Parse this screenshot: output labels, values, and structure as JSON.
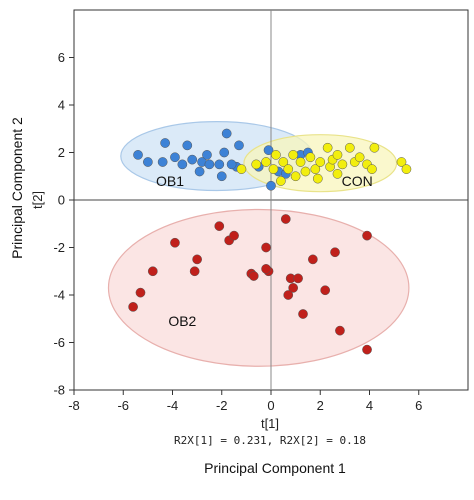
{
  "chart_data": {
    "type": "scatter",
    "xlabel": "Principal Component 1",
    "ylabel": "Principal Component 2",
    "x_short_label": "t[1]",
    "y_short_label": "t[2]",
    "variance_text": "R2X[1] = 0.231, R2X[2] = 0.18",
    "xlim": [
      -8,
      8
    ],
    "ylim": [
      -8,
      8
    ],
    "x_ticks": [
      "-8",
      "-6",
      "-4",
      "-2",
      "0",
      "2",
      "4",
      "6"
    ],
    "y_ticks": [
      "-8",
      "-6",
      "-4",
      "-2",
      "0",
      "2",
      "4",
      "6"
    ],
    "grid": false,
    "series": [
      {
        "name": "OB1",
        "color": "#3d82d6",
        "ellipse_color": "#cfe3f6",
        "ellipse_stroke": "#a9c8e8",
        "ellipse": {
          "cx": -2.2,
          "cy": 1.85,
          "rx": 3.9,
          "ry": 1.45
        },
        "points": [
          [
            -5.4,
            1.9
          ],
          [
            -5.0,
            1.6
          ],
          [
            -4.4,
            1.6
          ],
          [
            -3.9,
            1.8
          ],
          [
            -3.6,
            1.5
          ],
          [
            -4.3,
            2.4
          ],
          [
            -3.4,
            2.3
          ],
          [
            -3.2,
            1.7
          ],
          [
            -2.9,
            1.2
          ],
          [
            -2.8,
            1.6
          ],
          [
            -2.6,
            1.9
          ],
          [
            -2.5,
            1.5
          ],
          [
            -2.1,
            1.5
          ],
          [
            -2.0,
            1.0
          ],
          [
            -1.9,
            2.0
          ],
          [
            -1.8,
            2.8
          ],
          [
            -1.4,
            1.4
          ],
          [
            -1.3,
            2.3
          ],
          [
            -0.5,
            1.4
          ],
          [
            -0.1,
            2.1
          ],
          [
            0.0,
            0.6
          ],
          [
            0.3,
            1.2
          ],
          [
            0.6,
            1.1
          ],
          [
            1.2,
            1.9
          ],
          [
            1.5,
            2.0
          ],
          [
            -1.6,
            1.5
          ]
        ]
      },
      {
        "name": "CON",
        "color": "#f2ee0e",
        "ellipse_color": "#f8f6bc",
        "ellipse_stroke": "#e9e38a",
        "ellipse": {
          "cx": 2.0,
          "cy": 1.55,
          "rx": 3.1,
          "ry": 1.2
        },
        "points": [
          [
            -1.2,
            1.3
          ],
          [
            -0.6,
            1.5
          ],
          [
            -0.2,
            1.6
          ],
          [
            0.2,
            1.9
          ],
          [
            0.1,
            1.3
          ],
          [
            0.5,
            1.6
          ],
          [
            0.7,
            1.3
          ],
          [
            0.9,
            1.9
          ],
          [
            1.2,
            1.6
          ],
          [
            1.4,
            1.2
          ],
          [
            1.6,
            1.8
          ],
          [
            1.8,
            1.3
          ],
          [
            1.9,
            0.9
          ],
          [
            2.0,
            1.6
          ],
          [
            2.3,
            2.2
          ],
          [
            2.4,
            1.4
          ],
          [
            2.5,
            1.7
          ],
          [
            2.7,
            1.9
          ],
          [
            2.7,
            1.1
          ],
          [
            2.9,
            1.5
          ],
          [
            3.2,
            2.2
          ],
          [
            3.4,
            1.6
          ],
          [
            3.6,
            1.8
          ],
          [
            3.9,
            1.5
          ],
          [
            4.1,
            1.3
          ],
          [
            4.2,
            2.2
          ],
          [
            5.3,
            1.6
          ],
          [
            5.5,
            1.3
          ],
          [
            1.0,
            1.0
          ],
          [
            0.4,
            0.8
          ]
        ]
      },
      {
        "name": "OB2",
        "color": "#c0201b",
        "ellipse_color": "#f9dcdb",
        "ellipse_stroke": "#e8b0ad",
        "ellipse": {
          "cx": -0.5,
          "cy": -3.7,
          "rx": 6.1,
          "ry": 3.3
        },
        "points": [
          [
            -5.6,
            -4.5
          ],
          [
            -5.3,
            -3.9
          ],
          [
            -4.8,
            -3.0
          ],
          [
            -3.9,
            -1.8
          ],
          [
            -3.1,
            -3.0
          ],
          [
            -3.0,
            -2.5
          ],
          [
            -2.1,
            -1.1
          ],
          [
            -1.7,
            -1.7
          ],
          [
            -1.5,
            -1.5
          ],
          [
            -0.8,
            -3.1
          ],
          [
            -0.7,
            -3.2
          ],
          [
            -0.2,
            -2.0
          ],
          [
            -0.1,
            -3.0
          ],
          [
            0.6,
            -0.8
          ],
          [
            0.8,
            -3.3
          ],
          [
            0.9,
            -3.7
          ],
          [
            0.7,
            -4.0
          ],
          [
            1.1,
            -3.3
          ],
          [
            1.3,
            -4.8
          ],
          [
            1.7,
            -2.5
          ],
          [
            2.2,
            -3.8
          ],
          [
            2.6,
            -2.2
          ],
          [
            2.8,
            -5.5
          ],
          [
            3.9,
            -1.5
          ],
          [
            3.9,
            -6.3
          ],
          [
            -0.2,
            -2.9
          ]
        ]
      }
    ]
  }
}
